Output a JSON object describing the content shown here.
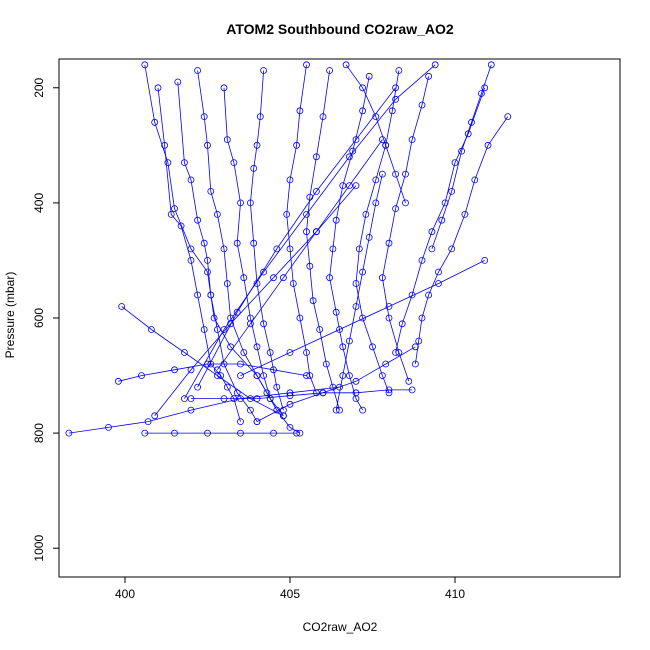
{
  "chart_data": {
    "type": "line",
    "title": "ATOM2 Southbound CO2raw_AO2",
    "xlabel": "CO2raw_AO2",
    "ylabel": "Pressure (mbar)",
    "xlim": [
      398,
      415
    ],
    "ylim": [
      1050,
      150
    ],
    "y_reversed": true,
    "xticks": [
      400,
      405,
      410
    ],
    "yticks": [
      200,
      400,
      600,
      800,
      1000
    ],
    "grid": false,
    "legend": "none",
    "series_color": "#0000ff",
    "marker": "open-circle",
    "series": [
      {
        "x": [
          400.6,
          400.9,
          401.3,
          401.5,
          402.0,
          402.5,
          402.6,
          402.7,
          403.2,
          404.0,
          404.3,
          404.6,
          405.0,
          405.3
        ],
        "y": [
          160,
          260,
          330,
          410,
          480,
          520,
          560,
          600,
          650,
          700,
          730,
          760,
          790,
          800
        ]
      },
      {
        "x": [
          401.0,
          401.2,
          401.4,
          401.7,
          402.0,
          402.2,
          402.4,
          402.6,
          402.9,
          403.1,
          403.3,
          403.5
        ],
        "y": [
          200,
          300,
          420,
          440,
          500,
          560,
          620,
          680,
          700,
          720,
          740,
          780
        ]
      },
      {
        "x": [
          401.6,
          401.8,
          402.0,
          402.2,
          402.4,
          402.5,
          402.6,
          402.8,
          403.0,
          403.4,
          403.8,
          404.0
        ],
        "y": [
          190,
          330,
          360,
          430,
          470,
          500,
          560,
          620,
          680,
          730,
          760,
          780
        ]
      },
      {
        "x": [
          402.2,
          402.4,
          402.5,
          402.6,
          402.8,
          403.0,
          403.1,
          403.2,
          403.6,
          404.0,
          404.4,
          404.8
        ],
        "y": [
          170,
          250,
          300,
          380,
          420,
          480,
          540,
          600,
          660,
          700,
          740,
          770
        ]
      },
      {
        "x": [
          403.0,
          403.1,
          403.3,
          403.5,
          403.4,
          403.6,
          403.8,
          404.0,
          404.2,
          404.4
        ],
        "y": [
          200,
          290,
          330,
          400,
          470,
          530,
          600,
          650,
          700,
          740
        ]
      },
      {
        "x": [
          404.2,
          404.1,
          404.0,
          403.9,
          403.8,
          403.9,
          404.0,
          404.2,
          404.4,
          404.6,
          404.8
        ],
        "y": [
          170,
          250,
          300,
          340,
          400,
          470,
          540,
          610,
          660,
          720,
          760
        ]
      },
      {
        "x": [
          405.5,
          405.3,
          405.2,
          405.0,
          404.9,
          405.0,
          405.1,
          405.3,
          405.5,
          405.6,
          405.8
        ],
        "y": [
          160,
          240,
          300,
          360,
          420,
          480,
          540,
          600,
          660,
          700,
          730
        ]
      },
      {
        "x": [
          406.2,
          406.0,
          405.8,
          405.6,
          405.5,
          405.6,
          405.7,
          405.9,
          406.1,
          406.3,
          406.5
        ],
        "y": [
          170,
          250,
          320,
          390,
          450,
          510,
          570,
          620,
          680,
          720,
          760
        ]
      },
      {
        "x": [
          407.4,
          407.2,
          406.9,
          406.6,
          406.4,
          406.3,
          406.2,
          406.4,
          406.6,
          406.8,
          407.0,
          407.2
        ],
        "y": [
          180,
          240,
          310,
          370,
          430,
          480,
          530,
          590,
          650,
          700,
          740,
          760
        ]
      },
      {
        "x": [
          408.3,
          408.1,
          407.9,
          407.6,
          407.3,
          407.1,
          407.0,
          407.2,
          407.5,
          407.8,
          408.0
        ],
        "y": [
          170,
          240,
          300,
          360,
          420,
          480,
          540,
          600,
          650,
          700,
          730
        ]
      },
      {
        "x": [
          409.2,
          409.0,
          408.7,
          408.5,
          408.2,
          408.0,
          407.8,
          408.0,
          408.3,
          408.6
        ],
        "y": [
          180,
          230,
          290,
          350,
          410,
          470,
          530,
          600,
          660,
          710
        ]
      },
      {
        "x": [
          411.6,
          411.0,
          410.6,
          410.3,
          409.9,
          409.5,
          409.2,
          409.0,
          408.9,
          408.8
        ],
        "y": [
          250,
          300,
          360,
          420,
          480,
          520,
          560,
          600,
          640,
          680
        ]
      },
      {
        "x": [
          410.9,
          410.4,
          410.0,
          409.7,
          409.3,
          409.0,
          408.7,
          408.4,
          408.2
        ],
        "y": [
          200,
          280,
          330,
          400,
          450,
          500,
          560,
          610,
          660
        ]
      },
      {
        "x": [
          411.1,
          410.8,
          410.5,
          410.2,
          409.9,
          409.6,
          409.3
        ],
        "y": [
          160,
          210,
          260,
          310,
          380,
          430,
          480
        ]
      },
      {
        "x": [
          399.8,
          400.5,
          401.5,
          402.5,
          403.5,
          404.5,
          405.5
        ],
        "y": [
          710,
          700,
          690,
          680,
          680,
          690,
          700
        ]
      },
      {
        "x": [
          398.3,
          399.5,
          400.7,
          402.0,
          403.5,
          405.0,
          406.5
        ],
        "y": [
          800,
          790,
          780,
          760,
          740,
          730,
          720
        ]
      },
      {
        "x": [
          399.9,
          400.8,
          401.8,
          402.8,
          403.8,
          404.8
        ],
        "y": [
          580,
          620,
          660,
          700,
          740,
          770
        ]
      },
      {
        "x": [
          410.9,
          409.5,
          408.0,
          406.5,
          405.0,
          403.5
        ],
        "y": [
          500,
          540,
          580,
          620,
          660,
          700
        ]
      },
      {
        "x": [
          408.8,
          407.9,
          407.0,
          406.0,
          405.0,
          404.0
        ],
        "y": [
          650,
          680,
          710,
          730,
          750,
          780
        ]
      },
      {
        "x": [
          400.6,
          401.5,
          402.5,
          403.5,
          404.5,
          405.2
        ],
        "y": [
          800,
          800,
          800,
          800,
          800,
          800
        ]
      },
      {
        "x": [
          402.0,
          403.0,
          404.0,
          405.0,
          406.0,
          407.0,
          408.0,
          408.7
        ],
        "y": [
          740,
          740,
          740,
          735,
          730,
          730,
          725,
          725
        ]
      },
      {
        "x": [
          406.7,
          407.2,
          407.6,
          407.9,
          408.2,
          408.5
        ],
        "y": [
          160,
          200,
          250,
          300,
          350,
          400
        ]
      },
      {
        "x": [
          402.8,
          403.8,
          404.8,
          405.8,
          406.8,
          407.8
        ],
        "y": [
          690,
          610,
          530,
          450,
          370,
          290
        ]
      },
      {
        "x": [
          400.9,
          402.0,
          403.2,
          404.5,
          405.8,
          407.0
        ],
        "y": [
          770,
          690,
          610,
          530,
          450,
          370
        ]
      },
      {
        "x": [
          401.8,
          403.0,
          404.2,
          405.5,
          406.8,
          408.2,
          409.4
        ],
        "y": [
          740,
          620,
          520,
          420,
          320,
          220,
          160
        ]
      },
      {
        "x": [
          402.2,
          403.4,
          404.6,
          405.8,
          407.0,
          408.2
        ],
        "y": [
          720,
          590,
          480,
          380,
          290,
          200
        ]
      },
      {
        "x": [
          406.4,
          406.6,
          406.8,
          407.0,
          407.2,
          407.4,
          407.6,
          407.8
        ],
        "y": [
          760,
          700,
          640,
          580,
          520,
          460,
          400,
          350
        ]
      }
    ]
  }
}
